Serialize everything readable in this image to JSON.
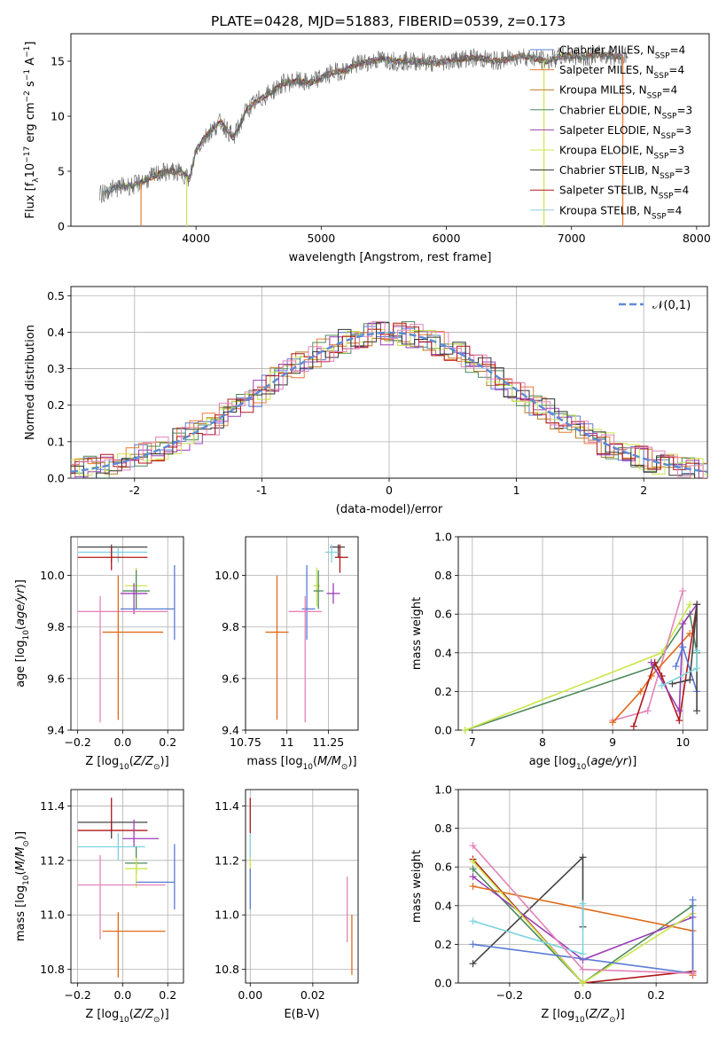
{
  "figure_title": "PLATE=0428, MJD=51883, FIBERID=0539, z=0.173",
  "colors": {
    "chabrier_miles": "#5b7bd5",
    "salpeter_miles": "#ec7a30",
    "kroupa_miles": "#b8781e",
    "chabrier_elodie": "#4e8a5a",
    "salpeter_elodie": "#9b3fb6",
    "kroupa_elodie": "#c9e64a",
    "chabrier_stelib": "#333333",
    "salpeter_stelib": "#b0161b",
    "kroupa_stelib": "#8ecfe0",
    "pink": "#e384b8",
    "orange": "#e06a1a",
    "blue": "#5b7bd5",
    "green": "#4e8a5a",
    "purple": "#9b3fb6",
    "lime": "#c9e64a",
    "dark": "#444444",
    "red": "#b0161b",
    "cyan": "#7fd4e0",
    "normal_curve": "#5b8ad6",
    "data_grey": "#666666"
  },
  "chart_data": [
    {
      "id": "spectrum",
      "type": "line",
      "title": "PLATE=0428, MJD=51883, FIBERID=0539, z=0.173",
      "xlabel": "wavelength [Angstrom, rest frame]",
      "ylabel": "Flux [f_λ10^-17 erg cm^-2 s^-1 A^-1]",
      "xlim": [
        3000,
        8100
      ],
      "ylim": [
        0,
        17.5
      ],
      "xticks": [
        4000,
        5000,
        6000,
        7000,
        8000
      ],
      "yticks": [
        0,
        5,
        10,
        15
      ],
      "legend_position": "right",
      "grid": false,
      "legend": [
        {
          "label": "Chabrier MILES, N_SSP=4",
          "color": "chabrier_miles"
        },
        {
          "label": "Salpeter MILES, N_SSP=4",
          "color": "salpeter_miles"
        },
        {
          "label": "Kroupa MILES, N_SSP=4",
          "color": "kroupa_miles"
        },
        {
          "label": "Chabrier ELODIE, N_SSP=3",
          "color": "chabrier_elodie"
        },
        {
          "label": "Salpeter ELODIE, N_SSP=3",
          "color": "salpeter_elodie"
        },
        {
          "label": "Kroupa ELODIE, N_SSP=3",
          "color": "kroupa_elodie"
        },
        {
          "label": "Chabrier STELIB, N_SSP=3",
          "color": "chabrier_stelib"
        },
        {
          "label": "Salpeter STELIB, N_SSP=4",
          "color": "salpeter_stelib"
        },
        {
          "label": "Kroupa STELIB, N_SSP=4",
          "color": "kroupa_stelib"
        }
      ],
      "continuum": [
        [
          3230,
          2.8
        ],
        [
          3300,
          3.3
        ],
        [
          3400,
          3.6
        ],
        [
          3500,
          3.7
        ],
        [
          3600,
          4.2
        ],
        [
          3700,
          4.8
        ],
        [
          3800,
          5.0
        ],
        [
          3900,
          4.8
        ],
        [
          3950,
          4.2
        ],
        [
          4000,
          7.0
        ],
        [
          4100,
          8.5
        ],
        [
          4200,
          9.5
        ],
        [
          4300,
          8.0
        ],
        [
          4400,
          10.5
        ],
        [
          4500,
          11.5
        ],
        [
          4600,
          12.2
        ],
        [
          4700,
          13.0
        ],
        [
          4800,
          13.2
        ],
        [
          4900,
          13.0
        ],
        [
          5000,
          13.5
        ],
        [
          5100,
          14.0
        ],
        [
          5200,
          14.2
        ],
        [
          5300,
          14.8
        ],
        [
          5400,
          15.0
        ],
        [
          5500,
          15.2
        ],
        [
          5600,
          15.0
        ],
        [
          5700,
          15.0
        ],
        [
          5800,
          15.0
        ],
        [
          5900,
          14.8
        ],
        [
          6000,
          15.0
        ],
        [
          6100,
          15.2
        ],
        [
          6200,
          15.3
        ],
        [
          6300,
          15.2
        ],
        [
          6400,
          15.0
        ],
        [
          6500,
          15.2
        ],
        [
          6600,
          15.5
        ],
        [
          6700,
          15.3
        ],
        [
          6800,
          15.0
        ],
        [
          6900,
          15.4
        ],
        [
          7000,
          15.5
        ],
        [
          7100,
          15.4
        ],
        [
          7200,
          15.6
        ],
        [
          7300,
          15.5
        ],
        [
          7400,
          15.4
        ],
        [
          7450,
          15.5
        ]
      ]
    },
    {
      "id": "residual_hist",
      "type": "line",
      "xlabel": "(data-model)/error",
      "ylabel": "Normed distribution",
      "xlim": [
        -2.5,
        2.5
      ],
      "ylim": [
        0,
        0.525
      ],
      "xticks": [
        -2,
        -1,
        0,
        1,
        2
      ],
      "yticks": [
        0.0,
        0.1,
        0.2,
        0.3,
        0.4,
        0.5
      ],
      "grid": true,
      "legend": [
        {
          "label": "𝒩(0,1)",
          "color": "normal_curve"
        }
      ],
      "legend_position": "top-right",
      "bin_width": 0.1,
      "series_colors": [
        "chabrier_miles",
        "salpeter_miles",
        "kroupa_miles",
        "chabrier_elodie",
        "salpeter_elodie",
        "kroupa_elodie",
        "chabrier_stelib",
        "salpeter_stelib",
        "pink"
      ]
    },
    {
      "id": "age_vs_Z",
      "type": "scatter",
      "xlabel": "Z [log10(Z/Z⊙)]",
      "ylabel": "age  [log10(age/yr)]",
      "xlim": [
        -0.23,
        0.27
      ],
      "ylim": [
        9.4,
        10.15
      ],
      "xticks": [
        -0.2,
        0.0,
        0.2
      ],
      "xtick_labels": [
        "−0.2",
        "0.0",
        "0.2"
      ],
      "yticks": [
        9.4,
        9.6,
        9.8,
        10.0
      ],
      "grid": true,
      "points": [
        {
          "x": -0.05,
          "xerr": [
            0.15,
            0.16
          ],
          "y": 10.11,
          "yerr": [
            0.06,
            0.01
          ],
          "color": "dark"
        },
        {
          "x": -0.02,
          "xerr": [
            0.18,
            0.13
          ],
          "y": 10.09,
          "yerr": [
            0.04,
            0.02
          ],
          "color": "cyan"
        },
        {
          "x": -0.05,
          "xerr": [
            0.15,
            0.16
          ],
          "y": 10.07,
          "yerr": [
            0.05,
            0.04
          ],
          "color": "red"
        },
        {
          "x": 0.06,
          "xerr": [
            0.05,
            0.05
          ],
          "y": 9.96,
          "yerr": [
            0.08,
            0.07
          ],
          "color": "lime"
        },
        {
          "x": 0.06,
          "xerr": [
            0.06,
            0.06
          ],
          "y": 9.94,
          "yerr": [
            0.07,
            0.08
          ],
          "color": "green"
        },
        {
          "x": 0.05,
          "xerr": [
            0.06,
            0.06
          ],
          "y": 9.93,
          "yerr": [
            0.08,
            0.04
          ],
          "color": "purple"
        },
        {
          "x": 0.06,
          "xerr": [
            0.07,
            0.17
          ],
          "y": 9.87,
          "yerr": [
            0.0,
            0.0
          ],
          "color": "blue"
        },
        {
          "x": 0.23,
          "xerr": [
            0.0,
            0.0
          ],
          "y": 9.9,
          "yerr": [
            0.15,
            0.14
          ],
          "color": "blue"
        },
        {
          "x": -0.1,
          "xerr": [
            0.1,
            0.3
          ],
          "y": 9.86,
          "yerr": [
            0.43,
            0.06
          ],
          "color": "pink"
        },
        {
          "x": -0.02,
          "xerr": [
            0.07,
            0.2
          ],
          "y": 9.78,
          "yerr": [
            0.34,
            0.22
          ],
          "color": "orange"
        }
      ]
    },
    {
      "id": "age_vs_mass",
      "type": "scatter",
      "xlabel": "mass [log10(M/M⊙)]",
      "ylabel": "",
      "xlim": [
        10.75,
        11.43
      ],
      "ylim": [
        9.4,
        10.15
      ],
      "xticks": [
        10.75,
        11.0,
        11.25
      ],
      "yticks": [
        9.4,
        9.6,
        9.8,
        10.0
      ],
      "grid": true,
      "points": [
        {
          "x": 11.31,
          "xerr": [
            0.05,
            0.04
          ],
          "y": 10.11,
          "yerr": [
            0.04,
            0.01
          ],
          "color": "dark"
        },
        {
          "x": 11.27,
          "xerr": [
            0.04,
            0.04
          ],
          "y": 10.09,
          "yerr": [
            0.04,
            0.03
          ],
          "color": "cyan"
        },
        {
          "x": 11.32,
          "xerr": [
            0.03,
            0.05
          ],
          "y": 10.07,
          "yerr": [
            0.06,
            0.05
          ],
          "color": "red"
        },
        {
          "x": 11.18,
          "xerr": [
            0.02,
            0.02
          ],
          "y": 9.96,
          "yerr": [
            0.08,
            0.07
          ],
          "color": "lime"
        },
        {
          "x": 11.19,
          "xerr": [
            0.03,
            0.03
          ],
          "y": 9.94,
          "yerr": [
            0.07,
            0.08
          ],
          "color": "green"
        },
        {
          "x": 11.28,
          "xerr": [
            0.04,
            0.04
          ],
          "y": 9.93,
          "yerr": [
            0.04,
            0.04
          ],
          "color": "purple"
        },
        {
          "x": 11.12,
          "xerr": [
            0.03,
            0.05
          ],
          "y": 9.87,
          "yerr": [
            0.12,
            0.17
          ],
          "color": "blue"
        },
        {
          "x": 11.11,
          "xerr": [
            0.1,
            0.1
          ],
          "y": 9.86,
          "yerr": [
            0.43,
            0.06
          ],
          "color": "pink"
        },
        {
          "x": 10.94,
          "xerr": [
            0.07,
            0.07
          ],
          "y": 9.78,
          "yerr": [
            0.34,
            0.22
          ],
          "color": "orange"
        }
      ]
    },
    {
      "id": "massweight_vs_age",
      "type": "line",
      "xlabel": "age  [log10(age/yr)]",
      "ylabel": "mass weight",
      "xlim": [
        6.8,
        10.35
      ],
      "ylim": [
        0.0,
        1.0
      ],
      "xticks": [
        7,
        8,
        9,
        10
      ],
      "yticks": [
        0.0,
        0.2,
        0.4,
        0.6,
        0.8,
        1.0
      ],
      "grid": true,
      "series": [
        {
          "color": "green",
          "x": [
            6.9,
            9.6,
            10.1,
            10.2
          ],
          "y": [
            0.0,
            0.33,
            0.6,
            0.4
          ]
        },
        {
          "color": "lime",
          "x": [
            6.9,
            9.7,
            10.1
          ],
          "y": [
            0.0,
            0.4,
            0.65
          ]
        },
        {
          "color": "pink",
          "x": [
            9.0,
            9.5,
            10.0
          ],
          "y": [
            0.05,
            0.1,
            0.72
          ]
        },
        {
          "color": "orange",
          "x": [
            9.0,
            9.4,
            9.55,
            10.1
          ],
          "y": [
            0.04,
            0.2,
            0.28,
            0.5
          ]
        },
        {
          "color": "red",
          "x": [
            9.3,
            9.6,
            9.7,
            9.95,
            10.2
          ],
          "y": [
            0.02,
            0.35,
            0.28,
            0.05,
            0.65
          ]
        },
        {
          "color": "purple",
          "x": [
            9.55,
            9.95,
            10.0,
            10.2
          ],
          "y": [
            0.35,
            0.1,
            0.55,
            0.65
          ]
        },
        {
          "color": "blue",
          "x": [
            9.9,
            10.0,
            10.2
          ],
          "y": [
            0.33,
            0.43,
            0.2
          ]
        },
        {
          "color": "dark",
          "x": [
            9.85,
            10.1,
            10.2,
            10.2
          ],
          "y": [
            0.24,
            0.26,
            0.65,
            0.1
          ]
        },
        {
          "color": "cyan",
          "x": [
            9.7,
            10.2,
            10.2
          ],
          "y": [
            0.23,
            0.32,
            0.41
          ]
        }
      ]
    },
    {
      "id": "mass_vs_Z",
      "type": "scatter",
      "xlabel": "Z [log10(Z/Z⊙)]",
      "ylabel": "mass [log10(M/M⊙)]",
      "xlim": [
        -0.23,
        0.27
      ],
      "ylim": [
        10.75,
        11.46
      ],
      "xticks": [
        -0.2,
        0.0,
        0.2
      ],
      "xtick_labels": [
        "−0.2",
        "0.0",
        "0.2"
      ],
      "yticks": [
        10.8,
        11.0,
        11.2,
        11.4
      ],
      "grid": true,
      "points": [
        {
          "x": -0.05,
          "xerr": [
            0.15,
            0.16
          ],
          "y": 11.34,
          "yerr": [
            0.06,
            0.0
          ],
          "color": "dark"
        },
        {
          "x": -0.05,
          "xerr": [
            0.15,
            0.16
          ],
          "y": 11.31,
          "yerr": [
            0.0,
            0.12
          ],
          "color": "red"
        },
        {
          "x": 0.05,
          "xerr": [
            0.05,
            0.11
          ],
          "y": 11.28,
          "yerr": [
            0.03,
            0.07
          ],
          "color": "purple"
        },
        {
          "x": -0.02,
          "xerr": [
            0.18,
            0.12
          ],
          "y": 11.25,
          "yerr": [
            0.05,
            0.05
          ],
          "color": "cyan"
        },
        {
          "x": 0.06,
          "xerr": [
            0.05,
            0.05
          ],
          "y": 11.19,
          "yerr": [
            0.04,
            0.06
          ],
          "color": "green"
        },
        {
          "x": 0.06,
          "xerr": [
            0.05,
            0.05
          ],
          "y": 11.17,
          "yerr": [
            0.07,
            0.04
          ],
          "color": "lime"
        },
        {
          "x": 0.23,
          "xerr": [
            0.17,
            0.0
          ],
          "y": 11.12,
          "yerr": [
            0.1,
            0.14
          ],
          "color": "blue"
        },
        {
          "x": -0.1,
          "xerr": [
            0.1,
            0.29
          ],
          "y": 11.11,
          "yerr": [
            0.2,
            0.11
          ],
          "color": "pink"
        },
        {
          "x": -0.02,
          "xerr": [
            0.07,
            0.21
          ],
          "y": 10.94,
          "yerr": [
            0.17,
            0.07
          ],
          "color": "orange"
        }
      ]
    },
    {
      "id": "mass_vs_ebv",
      "type": "scatter",
      "xlabel": "E(B-V)",
      "ylabel": "",
      "xlim": [
        -0.0015,
        0.0345
      ],
      "ylim": [
        10.75,
        11.46
      ],
      "xticks": [
        0.0,
        0.02
      ],
      "xtick_labels": [
        "0.00",
        "0.02"
      ],
      "yticks": [
        10.8,
        11.0,
        11.2,
        11.4
      ],
      "grid": true,
      "points": [
        {
          "x": 0.0,
          "y": 11.34,
          "yerr": [
            0.04,
            0.09
          ],
          "color": "red"
        },
        {
          "x": 0.0,
          "y": 11.25,
          "yerr": [
            0.05,
            0.05
          ],
          "color": "cyan"
        },
        {
          "x": 0.0,
          "y": 11.17,
          "yerr": [
            0.04,
            0.04
          ],
          "color": "lime"
        },
        {
          "x": 0.0,
          "y": 11.12,
          "yerr": [
            0.1,
            0.05
          ],
          "color": "blue"
        },
        {
          "x": 0.031,
          "y": 11.0,
          "yerr": [
            0.1,
            0.14
          ],
          "color": "pink"
        },
        {
          "x": 0.0325,
          "y": 10.88,
          "yerr": [
            0.1,
            0.12
          ],
          "color": "orange"
        }
      ]
    },
    {
      "id": "massweight_vs_Z",
      "type": "line",
      "xlabel": "Z [log10(Z/Z⊙)]",
      "ylabel": "mass weight",
      "xlim": [
        -0.34,
        0.34
      ],
      "ylim": [
        0.0,
        1.0
      ],
      "xticks": [
        -0.2,
        0.0,
        0.2
      ],
      "xtick_labels": [
        "−0.2",
        "0.0",
        "0.2"
      ],
      "yticks": [
        0.0,
        0.2,
        0.4,
        0.6,
        0.8,
        1.0
      ],
      "grid": true,
      "series": [
        {
          "color": "dark",
          "x": [
            -0.3,
            0.0,
            0.0
          ],
          "y": [
            0.1,
            0.65,
            0.29
          ]
        },
        {
          "color": "red",
          "x": [
            -0.3,
            0.0,
            0.3
          ],
          "y": [
            0.64,
            0.0,
            0.06
          ]
        },
        {
          "color": "green",
          "x": [
            -0.3,
            0.0,
            0.3
          ],
          "y": [
            0.59,
            0.0,
            0.4
          ]
        },
        {
          "color": "purple",
          "x": [
            -0.3,
            0.0,
            0.3
          ],
          "y": [
            0.55,
            0.12,
            0.34
          ]
        },
        {
          "color": "orange",
          "x": [
            -0.3,
            0.3,
            0.3
          ],
          "y": [
            0.5,
            0.27,
            0.04
          ]
        },
        {
          "color": "lime",
          "x": [
            -0.3,
            0.0,
            0.3
          ],
          "y": [
            0.63,
            0.0,
            0.36
          ]
        },
        {
          "color": "cyan",
          "x": [
            -0.3,
            0.0,
            0.0
          ],
          "y": [
            0.32,
            0.15,
            0.41
          ]
        },
        {
          "color": "blue",
          "x": [
            -0.3,
            0.3,
            0.3
          ],
          "y": [
            0.2,
            0.05,
            0.43
          ]
        },
        {
          "color": "pink",
          "x": [
            -0.3,
            0.0,
            0.3
          ],
          "y": [
            0.71,
            0.07,
            0.05
          ]
        }
      ]
    }
  ]
}
